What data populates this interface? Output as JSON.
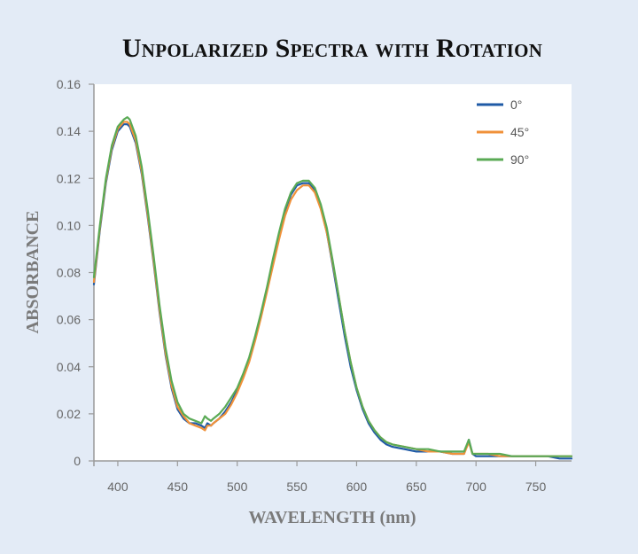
{
  "chart_data": {
    "type": "line",
    "title": "Unpolarized Spectra with Rotation",
    "xlabel": "WAVELENGTH (nm)",
    "ylabel": "ABSORBANCE",
    "xlim": [
      380,
      780
    ],
    "ylim": [
      0,
      0.16
    ],
    "xticks": [
      400,
      450,
      500,
      550,
      600,
      650,
      700,
      750
    ],
    "yticks": [
      0,
      0.02,
      0.04,
      0.06,
      0.08,
      0.1,
      0.12,
      0.14,
      0.16
    ],
    "ytick_labels": [
      "0",
      "0.02",
      "0.04",
      "0.06",
      "0.08",
      "0.10",
      "0.12",
      "0.14",
      "0.16"
    ],
    "legend_position": "top-right",
    "x": [
      380,
      385,
      390,
      395,
      400,
      405,
      408,
      410,
      415,
      420,
      425,
      430,
      435,
      440,
      445,
      450,
      455,
      460,
      465,
      470,
      473,
      475,
      478,
      480,
      485,
      490,
      495,
      500,
      505,
      510,
      515,
      520,
      525,
      530,
      535,
      540,
      545,
      550,
      555,
      560,
      565,
      570,
      575,
      580,
      585,
      590,
      595,
      600,
      605,
      610,
      615,
      620,
      625,
      630,
      640,
      650,
      660,
      670,
      680,
      690,
      694,
      697,
      700,
      710,
      720,
      730,
      740,
      750,
      760,
      770,
      780
    ],
    "series": [
      {
        "name": "0°",
        "color": "#1f5aa6",
        "values": [
          0.075,
          0.098,
          0.118,
          0.132,
          0.14,
          0.143,
          0.143,
          0.142,
          0.135,
          0.122,
          0.104,
          0.084,
          0.063,
          0.045,
          0.031,
          0.022,
          0.018,
          0.016,
          0.016,
          0.015,
          0.014,
          0.016,
          0.015,
          0.016,
          0.018,
          0.021,
          0.025,
          0.03,
          0.036,
          0.043,
          0.052,
          0.062,
          0.073,
          0.085,
          0.096,
          0.106,
          0.113,
          0.117,
          0.118,
          0.118,
          0.115,
          0.108,
          0.097,
          0.083,
          0.068,
          0.053,
          0.04,
          0.03,
          0.022,
          0.016,
          0.012,
          0.009,
          0.007,
          0.006,
          0.005,
          0.004,
          0.004,
          0.004,
          0.003,
          0.003,
          0.009,
          0.003,
          0.002,
          0.002,
          0.002,
          0.002,
          0.002,
          0.002,
          0.002,
          0.001,
          0.001
        ]
      },
      {
        "name": "45°",
        "color": "#f0913a",
        "values": [
          0.076,
          0.099,
          0.119,
          0.133,
          0.141,
          0.144,
          0.144,
          0.143,
          0.136,
          0.123,
          0.105,
          0.085,
          0.064,
          0.046,
          0.032,
          0.023,
          0.019,
          0.016,
          0.015,
          0.014,
          0.013,
          0.015,
          0.015,
          0.016,
          0.018,
          0.02,
          0.024,
          0.029,
          0.035,
          0.042,
          0.051,
          0.061,
          0.072,
          0.083,
          0.094,
          0.104,
          0.111,
          0.115,
          0.117,
          0.117,
          0.114,
          0.107,
          0.097,
          0.084,
          0.07,
          0.055,
          0.042,
          0.031,
          0.023,
          0.017,
          0.013,
          0.01,
          0.008,
          0.007,
          0.006,
          0.005,
          0.004,
          0.004,
          0.003,
          0.003,
          0.008,
          0.003,
          0.003,
          0.003,
          0.002,
          0.002,
          0.002,
          0.002,
          0.002,
          0.002,
          0.002
        ]
      },
      {
        "name": "90°",
        "color": "#5aaa55",
        "values": [
          0.078,
          0.1,
          0.12,
          0.134,
          0.142,
          0.145,
          0.146,
          0.145,
          0.138,
          0.125,
          0.107,
          0.087,
          0.066,
          0.048,
          0.034,
          0.025,
          0.02,
          0.018,
          0.017,
          0.016,
          0.019,
          0.018,
          0.017,
          0.018,
          0.02,
          0.023,
          0.027,
          0.031,
          0.037,
          0.044,
          0.053,
          0.063,
          0.074,
          0.086,
          0.097,
          0.107,
          0.114,
          0.118,
          0.119,
          0.119,
          0.116,
          0.109,
          0.099,
          0.085,
          0.07,
          0.055,
          0.042,
          0.031,
          0.023,
          0.017,
          0.013,
          0.01,
          0.008,
          0.007,
          0.006,
          0.005,
          0.005,
          0.004,
          0.004,
          0.004,
          0.009,
          0.003,
          0.003,
          0.003,
          0.003,
          0.002,
          0.002,
          0.002,
          0.002,
          0.002,
          0.002
        ]
      }
    ]
  }
}
